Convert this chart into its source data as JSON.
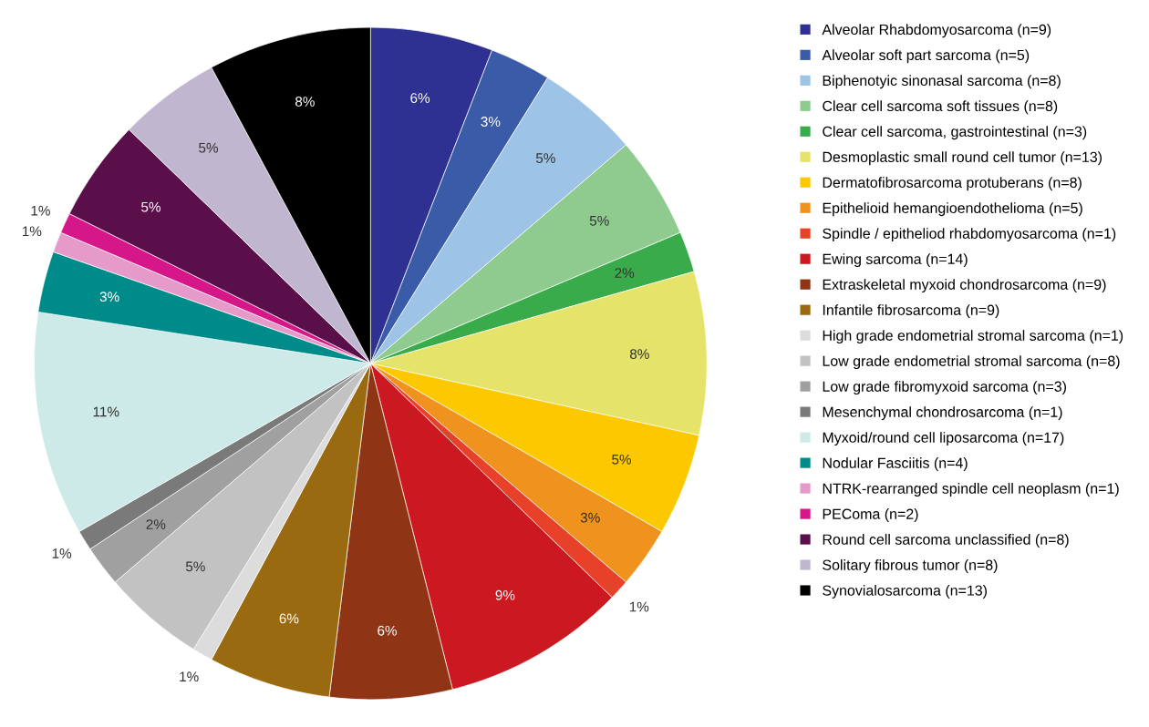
{
  "chart_data": {
    "type": "pie",
    "categories": [
      "Alveolar Rhabdomyosarcoma (n=9)",
      "Alveolar soft part sarcoma (n=5)",
      "Biphenotyic sinonasal sarcoma (n=8)",
      "Clear cell sarcoma soft tissues (n=8)",
      "Clear cell sarcoma, gastrointestinal (n=3)",
      "Desmoplastic small round cell tumor (n=13)",
      "Dermatofibrosarcoma protuberans (n=8)",
      "Epithelioid hemangioendothelioma (n=5)",
      "Spindle / epitheliod rhabdomyosarcoma (n=1)",
      "Ewing sarcoma (n=14)",
      "Extraskeletal myxoid chondrosarcoma (n=9)",
      "Infantile fibrosarcoma (n=9)",
      "High grade endometrial stromal sarcoma (n=1)",
      "Low grade endometrial stromal sarcoma (n=8)",
      "Low grade fibromyxoid sarcoma (n=3)",
      "Mesenchymal chondrosarcoma (n=1)",
      "Myxoid/round cell liposarcoma (n=17)",
      "Nodular Fasciitis (n=4)",
      "NTRK-rearranged spindle cell neoplasm (n=1)",
      "PEComa (n=2)",
      "Round cell sarcoma unclassified (n=8)",
      "Solitary fibrous tumor (n=8)",
      "Synovialosarcoma (n=13)"
    ],
    "values": [
      6,
      3,
      5,
      5,
      2,
      8,
      5,
      3,
      1,
      9,
      6,
      6,
      1,
      5,
      2,
      1,
      11,
      3,
      1,
      1,
      5,
      5,
      8
    ],
    "value_labels": [
      "6%",
      "3%",
      "5%",
      "5%",
      "2%",
      "8%",
      "5%",
      "3%",
      "1%",
      "9%",
      "6%",
      "6%",
      "1%",
      "5%",
      "2%",
      "1%",
      "11%",
      "3%",
      "1%",
      "1%",
      "5%",
      "5%",
      "8%"
    ],
    "colors": [
      "#2e3192",
      "#3a5ba8",
      "#9dc3e6",
      "#8fcb8f",
      "#3aab4a",
      "#e6e36a",
      "#fcc800",
      "#f0921e",
      "#e8412a",
      "#cc1820",
      "#8f3415",
      "#9a6a10",
      "#dcdcdc",
      "#c2c2c2",
      "#a0a0a0",
      "#7a7a7a",
      "#cde9e8",
      "#008b8b",
      "#e59ac9",
      "#d6178a",
      "#5b0f4a",
      "#c0b6cf",
      "#000000"
    ],
    "legend": "right"
  }
}
